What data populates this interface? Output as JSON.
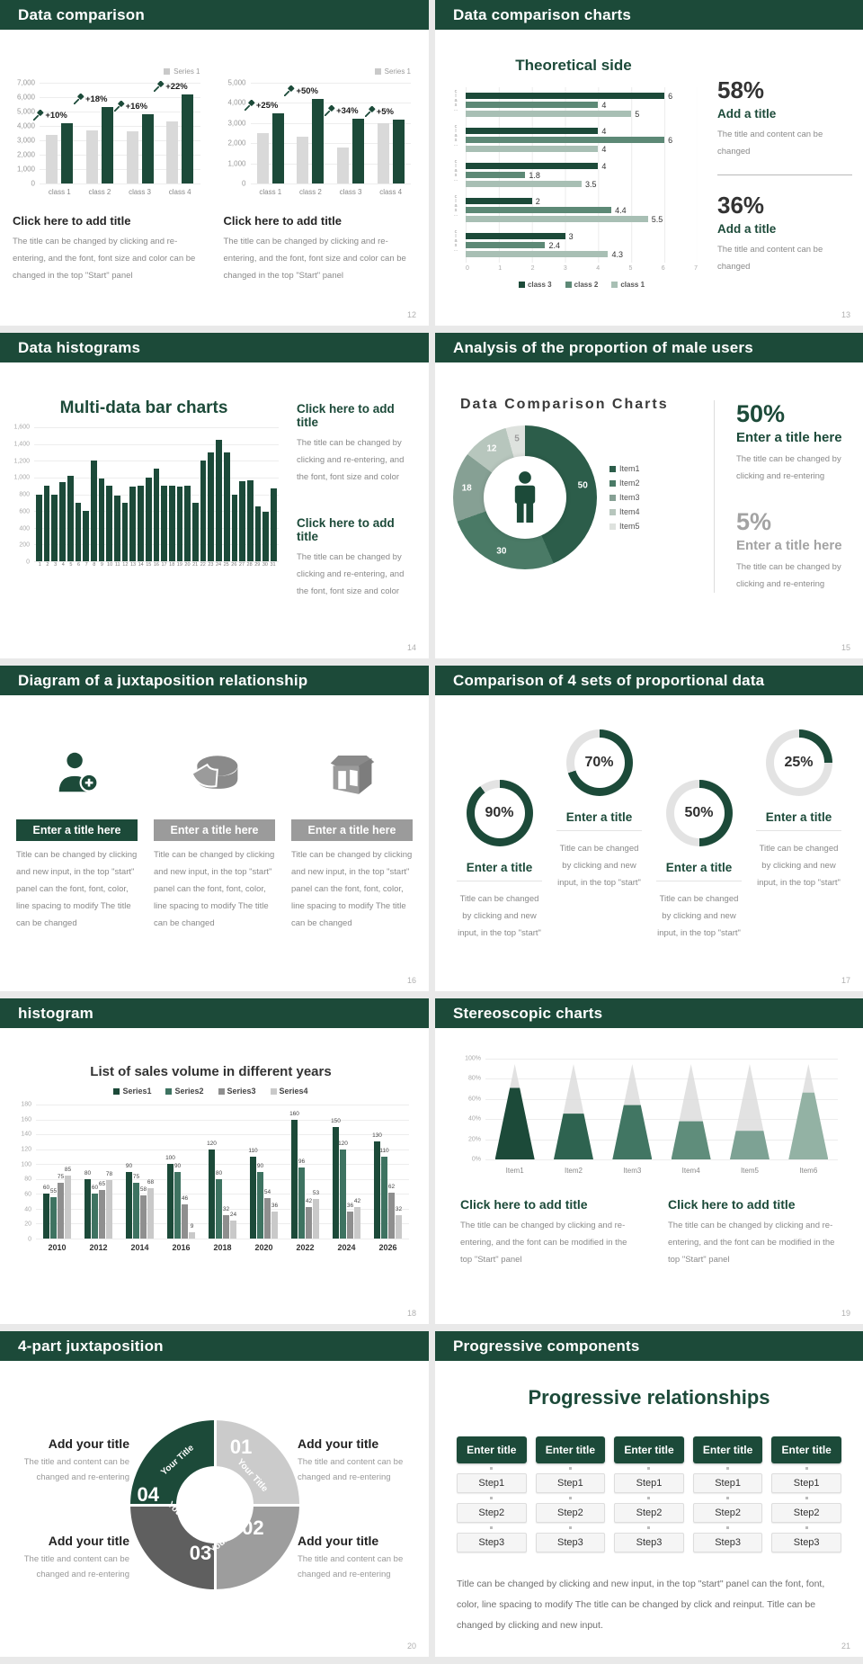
{
  "colors": {
    "header_bg": "#1c4a39",
    "dark_green": "#1c4a39",
    "mid_green": "#5d8976",
    "sage": "#a8bfb4",
    "bar_gray": "#d9d9d9"
  },
  "slides": [
    {
      "header": "Data comparison",
      "page": "12",
      "blocks": [
        {
          "title": "Click here to add title",
          "body": "The title can be changed by clicking and re-entering, and the font, font size and color can be changed in the top \"Start\" panel"
        },
        {
          "title": "Click here to add title",
          "body": "The title can be changed by clicking and re-entering, and the font, font size and color can be changed in the top \"Start\" panel"
        }
      ]
    },
    {
      "header": "Data comparison charts",
      "page": "13",
      "stats": [
        {
          "value": "58%",
          "title": "Add a title",
          "body": "The title and content can be changed"
        },
        {
          "value": "36%",
          "title": "Add a title",
          "body": "The title and content can be changed"
        }
      ]
    },
    {
      "header": "Data histograms",
      "page": "14",
      "blocks": [
        {
          "title": "Click here to add title",
          "body": "The title can be changed by clicking and re-entering, and the font, font size and color"
        },
        {
          "title": "Click here to add title",
          "body": "The title can be changed by clicking and re-entering, and the font, font size and color"
        }
      ]
    },
    {
      "header": "Analysis of the proportion of male users",
      "page": "15",
      "stats": [
        {
          "value": "50%",
          "title": "Enter a title here",
          "body": "The title can be changed by clicking and re-entering"
        },
        {
          "value": "5%",
          "title": "Enter a title here",
          "body": "The title can be changed by clicking and re-entering"
        }
      ]
    },
    {
      "header": "Diagram of a juxtaposition relationship",
      "page": "16",
      "columns": [
        {
          "icon": "person-add-icon",
          "title": "Enter a title here",
          "body": "Title can be changed by clicking and new input, in the top \"start\" panel can the font, font, color, line spacing to modify The title can be changed"
        },
        {
          "icon": "pie-cake-icon",
          "title": "Enter a title here",
          "body": "Title can be changed by clicking and new input, in the top \"start\" panel can the font, font, color, line spacing to modify The title can be changed"
        },
        {
          "icon": "store-icon",
          "title": "Enter a title here",
          "body": "Title can be changed by clicking and new input, in the top \"start\" panel can the font, font, color, line spacing to modify The title can be changed"
        }
      ]
    },
    {
      "header": "Comparison of 4 sets of proportional data",
      "page": "17",
      "items": [
        {
          "percent": "90%",
          "title": "Enter a title",
          "body": "Title can be changed by clicking and new input, in the top \"start\""
        },
        {
          "percent": "70%",
          "title": "Enter a title",
          "body": "Title can be changed by clicking and new input, in the top \"start\""
        },
        {
          "percent": "50%",
          "title": "Enter a title",
          "body": "Title can be changed by clicking and new input, in the top \"start\""
        },
        {
          "percent": "25%",
          "title": "Enter a title",
          "body": "Title can be changed by clicking and new input, in the top \"start\""
        }
      ]
    },
    {
      "header": "histogram",
      "page": "18"
    },
    {
      "header": "Stereoscopic charts",
      "page": "19",
      "blocks": [
        {
          "title": "Click here to add title",
          "body": "The title can be changed by clicking and re-entering, and the font can be modified in the top \"Start\" panel"
        },
        {
          "title": "Click here to add title",
          "body": "The title can be changed by clicking and re-entering, and the font can be modified in the top \"Start\" panel"
        }
      ]
    },
    {
      "header": "4-part juxtaposition",
      "page": "20",
      "wheel": {
        "arc_label": "Your Title",
        "numbers": [
          "01",
          "02",
          "03",
          "04"
        ]
      },
      "blocks": [
        {
          "title": "Add your title",
          "body": "The title and content can be changed and re-entering"
        },
        {
          "title": "Add your title",
          "body": "The title and content can be changed and re-entering"
        },
        {
          "title": "Add your title",
          "body": "The title and content can be changed and re-entering"
        },
        {
          "title": "Add your title",
          "body": "The title and content can be changed and re-entering"
        }
      ]
    },
    {
      "header": "Progressive components",
      "page": "21",
      "title": "Progressive relationships",
      "button_label": "Enter title",
      "steps": [
        "Step1",
        "Step2",
        "Step3"
      ],
      "body": "Title can be changed by clicking and new input, in the top \"start\" panel can the font, font, color, line spacing to modify The title can be changed by click and reinput. Title can be changed by clicking and new input."
    }
  ],
  "chart_data": [
    {
      "type": "bar",
      "legend": [
        "Series 1"
      ],
      "categories": [
        "class 1",
        "class 2",
        "class 3",
        "class 4"
      ],
      "series": [
        {
          "name": "base",
          "color": "#d9d9d9",
          "values": [
            3400,
            3700,
            3600,
            4300
          ]
        },
        {
          "name": "Series 1",
          "color": "#1c4a39",
          "values": [
            4200,
            5300,
            4800,
            6200
          ]
        }
      ],
      "point_labels": [
        "+10%",
        "+18%",
        "+16%",
        "+22%"
      ],
      "ylim": [
        0,
        7000
      ],
      "yticks": [
        "7,000",
        "6,000",
        "5,000",
        "4,000",
        "3,000",
        "2,000",
        "1,000",
        "0"
      ]
    },
    {
      "type": "bar",
      "legend": [
        "Series 1"
      ],
      "categories": [
        "class 1",
        "class 2",
        "class 3",
        "class 4"
      ],
      "series": [
        {
          "name": "base",
          "color": "#d9d9d9",
          "values": [
            2500,
            2300,
            1800,
            3000
          ]
        },
        {
          "name": "Series 1",
          "color": "#1c4a39",
          "values": [
            3500,
            4200,
            3200,
            3150
          ]
        }
      ],
      "point_labels": [
        "+25%",
        "+50%",
        "+34%",
        "+5%"
      ],
      "ylim": [
        0,
        5000
      ],
      "yticks": [
        "5,000",
        "4,000",
        "3,000",
        "2,000",
        "1,000",
        "0"
      ]
    },
    {
      "type": "bar-horizontal",
      "title": "Theoretical side",
      "group_label": "clas…",
      "legend": [
        "class 3",
        "class 2",
        "class 1"
      ],
      "colors": [
        "#1c4a39",
        "#5d8976",
        "#a8bfb4"
      ],
      "groups": [
        [
          6,
          4,
          5
        ],
        [
          4,
          6,
          4
        ],
        [
          4,
          1.8,
          3.5
        ],
        [
          2,
          4.4,
          5.5
        ],
        [
          3,
          2.4,
          4.3
        ]
      ],
      "xlim": [
        0,
        7
      ],
      "xticks": [
        "0",
        "1",
        "2",
        "3",
        "4",
        "5",
        "6",
        "7"
      ]
    },
    {
      "type": "bar",
      "title": "Multi-data bar charts",
      "color": "#1c4a39",
      "categories": [
        "1",
        "2",
        "3",
        "4",
        "5",
        "6",
        "7",
        "8",
        "9",
        "10",
        "11",
        "12",
        "13",
        "14",
        "15",
        "16",
        "17",
        "18",
        "19",
        "20",
        "21",
        "22",
        "23",
        "24",
        "25",
        "26",
        "27",
        "28",
        "29",
        "30",
        "31"
      ],
      "values": [
        790,
        900,
        800,
        950,
        1020,
        700,
        600,
        1200,
        990,
        900,
        780,
        700,
        890,
        900,
        1000,
        1110,
        900,
        900,
        890,
        900,
        700,
        1200,
        1300,
        1450,
        1300,
        800,
        960,
        970,
        660,
        590,
        870
      ],
      "ylim": [
        0,
        1600
      ],
      "yticks": [
        "1,600",
        "1,400",
        "1,200",
        "1,000",
        "800",
        "600",
        "400",
        "200",
        "0"
      ]
    },
    {
      "type": "donut",
      "title": "Data Comparison Charts",
      "labels": [
        "Item1",
        "Item2",
        "Item3",
        "Item4",
        "Item5"
      ],
      "values": [
        50,
        30,
        18,
        12,
        5
      ],
      "colors": [
        "#2c5d4a",
        "#4a7a66",
        "#86a094",
        "#b7c6bd",
        "#dee2de"
      ]
    },
    {
      "type": "progress-rings",
      "values": [
        90,
        70,
        50,
        25
      ],
      "color": "#1c4a39",
      "track": "#e3e3e3"
    },
    {
      "type": "bar-grouped",
      "title": "List of sales volume in different years",
      "categories": [
        "2010",
        "2012",
        "2014",
        "2016",
        "2018",
        "2020",
        "2022",
        "2024",
        "2026"
      ],
      "series": [
        {
          "name": "Series1",
          "color": "#1c4a39",
          "values": [
            60,
            80,
            90,
            100,
            120,
            110,
            160,
            150,
            130
          ]
        },
        {
          "name": "Series2",
          "color": "#3e7361",
          "values": [
            55,
            60,
            75,
            90,
            80,
            90,
            96,
            120,
            110
          ]
        },
        {
          "name": "Series3",
          "color": "#8f8f8f",
          "values": [
            75,
            65,
            58,
            46,
            32,
            54,
            42,
            36,
            62
          ]
        },
        {
          "name": "Series4",
          "color": "#c9c9c9",
          "values": [
            85,
            78,
            68,
            9,
            24,
            36,
            53,
            42,
            32
          ]
        }
      ],
      "ylim": [
        0,
        180
      ],
      "yticks": [
        "180",
        "160",
        "140",
        "120",
        "100",
        "80",
        "60",
        "40",
        "20",
        "0"
      ]
    },
    {
      "type": "cone",
      "categories": [
        "Item1",
        "Item2",
        "Item3",
        "Item4",
        "Item5",
        "Item6"
      ],
      "values": [
        75,
        48,
        57,
        40,
        30,
        70
      ],
      "colors": [
        "#1c4a39",
        "#2e6350",
        "#417663",
        "#5f8d7b",
        "#7da294",
        "#93b2a4"
      ],
      "yticks": [
        "100%",
        "80%",
        "60%",
        "40%",
        "20%",
        "0%"
      ]
    }
  ]
}
